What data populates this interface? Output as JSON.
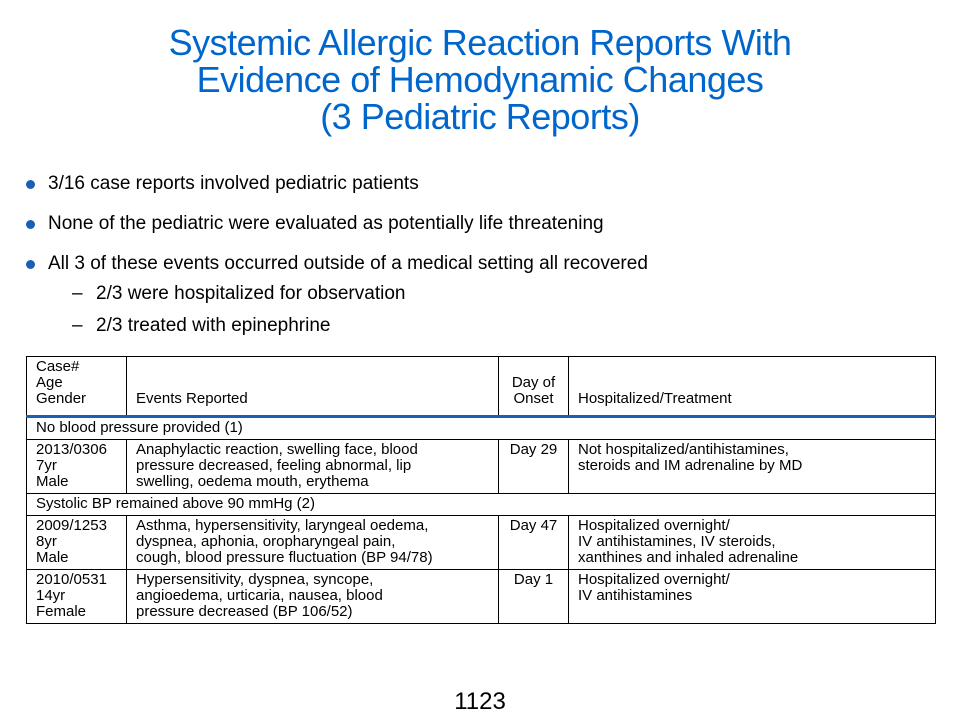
{
  "title": {
    "line1": "Systemic Allergic Reaction Reports With",
    "line2": "Evidence of Hemodynamic Changes",
    "line3": "(3 Pediatric Reports)"
  },
  "bullets": [
    "3/16 case reports involved pediatric patients",
    "None of the pediatric were evaluated as potentially life threatening",
    "All 3 of these events occurred outside of a medical setting all recovered"
  ],
  "sub_bullets": [
    "2/3 were hospitalized for observation",
    "2/3 treated with epinephrine"
  ],
  "table": {
    "headers": {
      "case": [
        "Case#",
        "Age",
        "Gender"
      ],
      "events": "Events Reported",
      "day": [
        "Day of",
        "Onset"
      ],
      "treatment": "Hospitalized/Treatment"
    },
    "groups": [
      {
        "label": "No blood pressure provided (1)",
        "rows": [
          {
            "case": [
              "2013/0306",
              "7yr",
              "Male"
            ],
            "events": [
              "Anaphylactic reaction, swelling face, blood",
              "pressure decreased, feeling abnormal, lip",
              "swelling, oedema mouth, erythema"
            ],
            "day": "Day 29",
            "treatment": [
              "Not hospitalized/antihistamines,",
              "steroids and IM adrenaline by MD"
            ]
          }
        ]
      },
      {
        "label": "Systolic BP remained above 90 mmHg (2)",
        "rows": [
          {
            "case": [
              "2009/1253",
              "8yr",
              "Male"
            ],
            "events": [
              "Asthma, hypersensitivity, laryngeal oedema,",
              "dyspnea, aphonia, oropharyngeal pain,",
              "cough, blood pressure fluctuation (BP 94/78)"
            ],
            "day": "Day 47",
            "treatment": [
              "Hospitalized overnight/",
              "IV antihistamines, IV steroids,",
              "xanthines and inhaled adrenaline"
            ]
          },
          {
            "case": [
              "2010/0531",
              "14yr",
              "Female"
            ],
            "events": [
              "Hypersensitivity, dyspnea, syncope,",
              "angioedema, urticaria, nausea, blood",
              "pressure decreased (BP 106/52)"
            ],
            "day": "Day 1",
            "treatment": [
              "Hospitalized overnight/",
              "IV antihistamines"
            ]
          }
        ]
      }
    ]
  },
  "page_number": "1123"
}
